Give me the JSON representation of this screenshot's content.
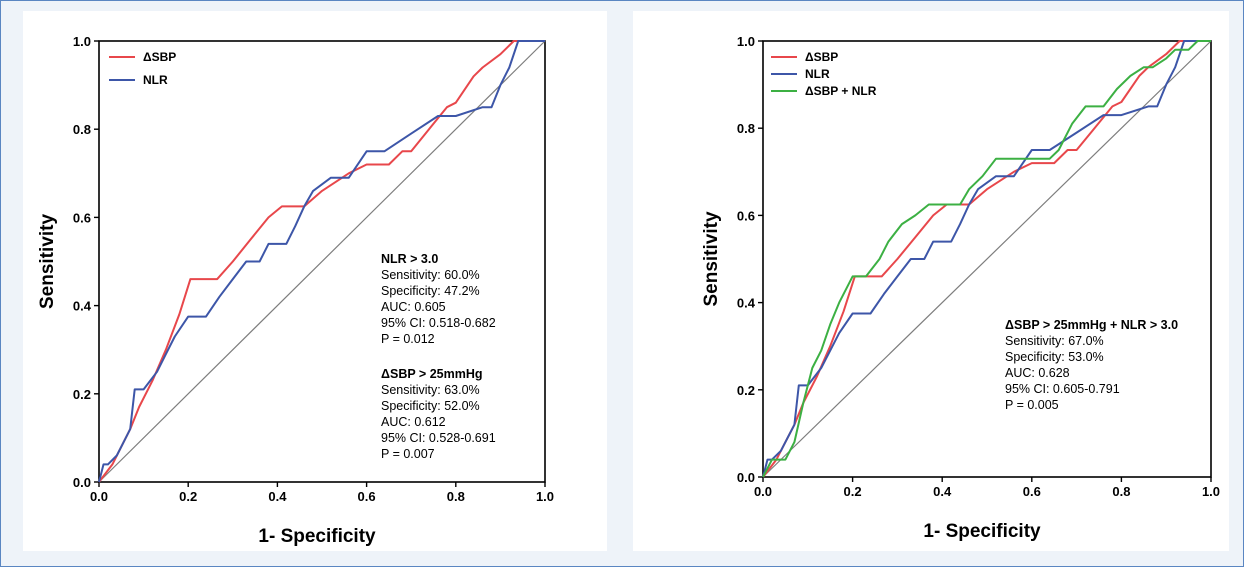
{
  "chart_data": [
    {
      "type": "line",
      "xlabel": "1- Specificity",
      "ylabel": "Sensitivity",
      "xlim": [
        0,
        1
      ],
      "ylim": [
        0,
        1
      ],
      "xticks": [
        "0.0",
        "0.2",
        "0.4",
        "0.6",
        "0.8",
        "1.0"
      ],
      "yticks": [
        "0.0",
        "0.2",
        "0.4",
        "0.6",
        "0.8",
        "1.0"
      ],
      "legend_position": "top-left",
      "reference_line": true,
      "series": [
        {
          "name": "ΔSBP",
          "color": "#e8474b",
          "x": [
            0.0,
            0.03,
            0.05,
            0.07,
            0.09,
            0.12,
            0.15,
            0.18,
            0.205,
            0.265,
            0.3,
            0.34,
            0.38,
            0.41,
            0.46,
            0.5,
            0.56,
            0.6,
            0.65,
            0.68,
            0.7,
            0.74,
            0.78,
            0.8,
            0.84,
            0.86,
            0.9,
            0.93,
            0.96,
            1.0
          ],
          "y": [
            0.0,
            0.04,
            0.08,
            0.12,
            0.17,
            0.23,
            0.3,
            0.38,
            0.46,
            0.46,
            0.5,
            0.55,
            0.6,
            0.625,
            0.625,
            0.66,
            0.7,
            0.72,
            0.72,
            0.75,
            0.75,
            0.8,
            0.85,
            0.86,
            0.92,
            0.94,
            0.97,
            1.0,
            1.0,
            1.0
          ]
        },
        {
          "name": "NLR",
          "color": "#3d56a8",
          "x": [
            0.0,
            0.01,
            0.02,
            0.04,
            0.05,
            0.07,
            0.08,
            0.1,
            0.13,
            0.15,
            0.17,
            0.2,
            0.24,
            0.27,
            0.3,
            0.33,
            0.36,
            0.38,
            0.42,
            0.44,
            0.46,
            0.48,
            0.52,
            0.56,
            0.6,
            0.64,
            0.7,
            0.76,
            0.8,
            0.86,
            0.88,
            0.9,
            0.92,
            0.94,
            1.0
          ],
          "y": [
            0.0,
            0.04,
            0.04,
            0.06,
            0.08,
            0.12,
            0.21,
            0.21,
            0.25,
            0.29,
            0.33,
            0.375,
            0.375,
            0.42,
            0.46,
            0.5,
            0.5,
            0.54,
            0.54,
            0.58,
            0.625,
            0.66,
            0.69,
            0.69,
            0.75,
            0.75,
            0.79,
            0.83,
            0.83,
            0.85,
            0.85,
            0.9,
            0.94,
            1.0,
            1.0
          ]
        }
      ],
      "annotations": [
        {
          "title": "NLR > 3.0",
          "lines": [
            "Sensitivity: 60.0%",
            "Specificity: 47.2%",
            "AUC: 0.605",
            "95% CI: 0.518-0.682",
            "P = 0.012"
          ]
        },
        {
          "title": "ΔSBP > 25mmHg",
          "lines": [
            "Sensitivity: 63.0%",
            "Specificity: 52.0%",
            "AUC: 0.612",
            "95% CI: 0.528-0.691",
            "P = 0.007"
          ]
        }
      ]
    },
    {
      "type": "line",
      "xlabel": "1- Specificity",
      "ylabel": "Sensitivity",
      "xlim": [
        0,
        1
      ],
      "ylim": [
        0,
        1
      ],
      "xticks": [
        "0.0",
        "0.2",
        "0.4",
        "0.6",
        "0.8",
        "1.0"
      ],
      "yticks": [
        "0.0",
        "0.2",
        "0.4",
        "0.6",
        "0.8",
        "1.0"
      ],
      "legend_position": "top-left",
      "reference_line": true,
      "series": [
        {
          "name": "ΔSBP",
          "color": "#e8474b",
          "x": [
            0.0,
            0.03,
            0.05,
            0.07,
            0.09,
            0.12,
            0.15,
            0.18,
            0.205,
            0.265,
            0.3,
            0.34,
            0.38,
            0.41,
            0.46,
            0.5,
            0.56,
            0.6,
            0.65,
            0.68,
            0.7,
            0.74,
            0.78,
            0.8,
            0.84,
            0.86,
            0.9,
            0.93,
            0.96,
            1.0
          ],
          "y": [
            0.0,
            0.04,
            0.08,
            0.12,
            0.17,
            0.23,
            0.3,
            0.38,
            0.46,
            0.46,
            0.5,
            0.55,
            0.6,
            0.625,
            0.625,
            0.66,
            0.7,
            0.72,
            0.72,
            0.75,
            0.75,
            0.8,
            0.85,
            0.86,
            0.92,
            0.94,
            0.97,
            1.0,
            1.0,
            1.0
          ]
        },
        {
          "name": "NLR",
          "color": "#3d56a8",
          "x": [
            0.0,
            0.01,
            0.02,
            0.04,
            0.05,
            0.07,
            0.08,
            0.1,
            0.13,
            0.15,
            0.17,
            0.2,
            0.24,
            0.27,
            0.3,
            0.33,
            0.36,
            0.38,
            0.42,
            0.44,
            0.46,
            0.48,
            0.52,
            0.56,
            0.6,
            0.64,
            0.7,
            0.76,
            0.8,
            0.86,
            0.88,
            0.9,
            0.92,
            0.94,
            1.0
          ],
          "y": [
            0.0,
            0.04,
            0.04,
            0.06,
            0.08,
            0.12,
            0.21,
            0.21,
            0.25,
            0.29,
            0.33,
            0.375,
            0.375,
            0.42,
            0.46,
            0.5,
            0.5,
            0.54,
            0.54,
            0.58,
            0.625,
            0.66,
            0.69,
            0.69,
            0.75,
            0.75,
            0.79,
            0.83,
            0.83,
            0.85,
            0.85,
            0.9,
            0.94,
            1.0,
            1.0
          ]
        },
        {
          "name": "ΔSBP + NLR",
          "color": "#3cb043",
          "x": [
            0.0,
            0.02,
            0.05,
            0.07,
            0.09,
            0.11,
            0.13,
            0.15,
            0.17,
            0.2,
            0.23,
            0.26,
            0.28,
            0.31,
            0.34,
            0.37,
            0.4,
            0.44,
            0.46,
            0.49,
            0.52,
            0.56,
            0.6,
            0.64,
            0.66,
            0.69,
            0.72,
            0.76,
            0.79,
            0.82,
            0.85,
            0.87,
            0.9,
            0.92,
            0.95,
            0.97,
            1.0
          ],
          "y": [
            0.0,
            0.04,
            0.04,
            0.08,
            0.17,
            0.25,
            0.29,
            0.35,
            0.4,
            0.46,
            0.46,
            0.5,
            0.54,
            0.58,
            0.6,
            0.625,
            0.625,
            0.625,
            0.66,
            0.69,
            0.73,
            0.73,
            0.73,
            0.73,
            0.75,
            0.81,
            0.85,
            0.85,
            0.89,
            0.92,
            0.94,
            0.94,
            0.96,
            0.98,
            0.98,
            1.0,
            1.0
          ]
        }
      ],
      "annotations": [
        {
          "title": "ΔSBP > 25mmHg + NLR > 3.0",
          "lines": [
            "Sensitivity: 67.0%",
            "Specificity: 53.0%",
            "AUC: 0.628",
            "95% CI: 0.605-0.791",
            "P = 0.005"
          ]
        }
      ]
    }
  ]
}
